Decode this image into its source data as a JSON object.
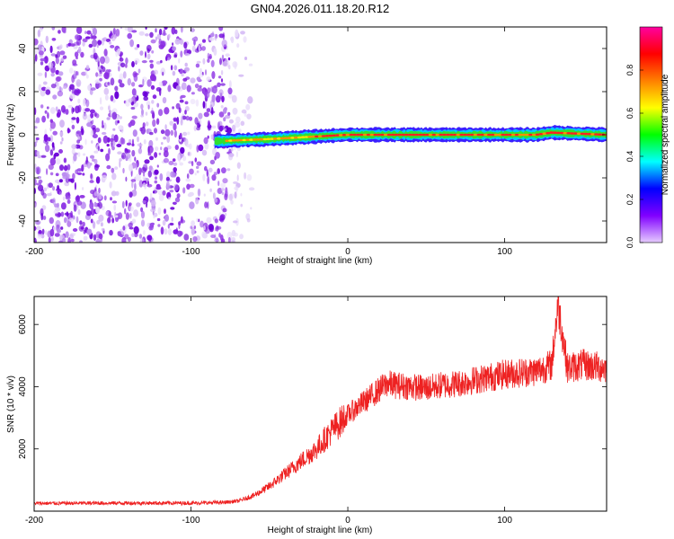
{
  "figure": {
    "title": "GN04.2026.011.18.20.R12"
  },
  "chart_data": [
    {
      "type": "heatmap",
      "name": "spectrogram",
      "title": "GN04.2026.011.18.20.R12",
      "xlabel": "Height of straight line (km)",
      "ylabel": "Frequency (Hz)",
      "xlim": [
        -200,
        165
      ],
      "ylim": [
        -50,
        50
      ],
      "xticks": [
        -200,
        -100,
        0,
        100
      ],
      "yticks": [
        -40,
        -20,
        0,
        20,
        40
      ],
      "signal_track": {
        "x_start": -85,
        "x_end": 165,
        "frequency_hz": [
          {
            "x": -85,
            "f": -3
          },
          {
            "x": -50,
            "f": -2
          },
          {
            "x": 0,
            "f": 0
          },
          {
            "x": 80,
            "f": 0
          },
          {
            "x": 120,
            "f": 0
          },
          {
            "x": 130,
            "f": 1
          },
          {
            "x": 165,
            "f": 0
          }
        ]
      },
      "noise_region": {
        "x_start": -200,
        "x_end": -60
      }
    },
    {
      "type": "colorbar",
      "name": "colorbar",
      "label": "Normalized spectral amplitude",
      "range": [
        0,
        1
      ],
      "ticks": [
        0.0,
        0.2,
        0.4,
        0.6,
        0.8
      ],
      "tick_labels": [
        "0.0",
        "0.2",
        "0.4",
        "0.6",
        "0.8"
      ],
      "colors": [
        "#e6ccff",
        "#8000ff",
        "#0000ff",
        "#00ffff",
        "#00ff00",
        "#ffff00",
        "#ff8000",
        "#ff0000",
        "#ff00a0"
      ]
    },
    {
      "type": "line",
      "name": "snr",
      "xlabel": "Height of straight line (km)",
      "ylabel": "SNR (10 * v/v)",
      "xlim": [
        -200,
        165
      ],
      "ylim": [
        0,
        6900
      ],
      "xticks": [
        -200,
        -100,
        0,
        100
      ],
      "yticks": [
        2000,
        4000,
        6000
      ],
      "color": "#ee2222",
      "series": [
        {
          "name": "SNR",
          "x": [
            -200,
            -150,
            -100,
            -80,
            -70,
            -60,
            -50,
            -40,
            -30,
            -20,
            -10,
            0,
            10,
            20,
            25,
            30,
            40,
            50,
            60,
            70,
            80,
            90,
            100,
            110,
            120,
            130,
            134,
            140,
            150,
            165
          ],
          "values": [
            250,
            260,
            260,
            280,
            320,
            500,
            800,
            1200,
            1600,
            2000,
            2600,
            3100,
            3500,
            3900,
            4100,
            4050,
            4000,
            3950,
            4050,
            4100,
            4200,
            4300,
            4400,
            4450,
            4500,
            4700,
            6700,
            4600,
            4700,
            4600
          ]
        }
      ]
    }
  ]
}
